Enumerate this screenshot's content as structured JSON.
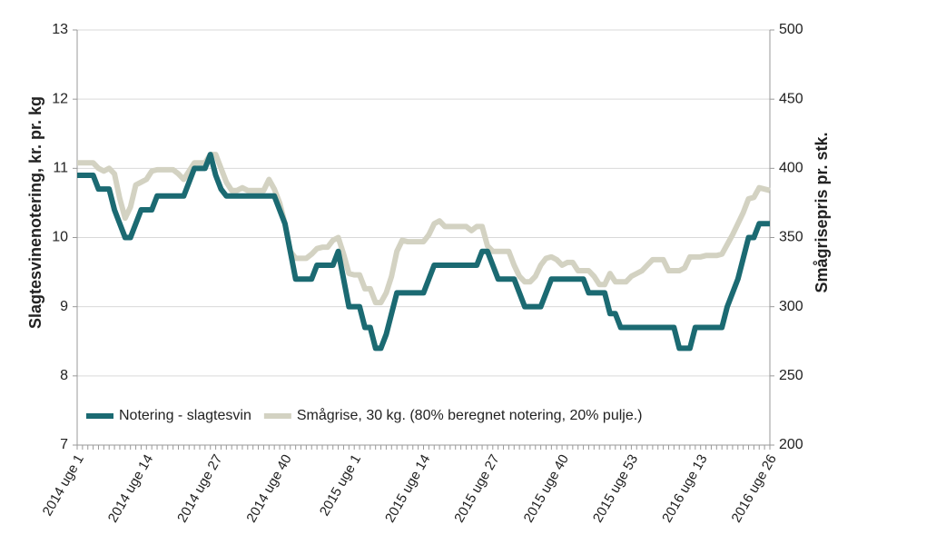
{
  "chart_data": {
    "type": "line",
    "y_label": "Slagtesvinenotering, kr. pr. kg",
    "y2_label": "Smågrisepris pr. stk.",
    "categories": [
      "2014 uge 1",
      null,
      null,
      null,
      null,
      null,
      null,
      null,
      null,
      null,
      null,
      null,
      null,
      "2014 uge 14",
      null,
      null,
      null,
      null,
      null,
      null,
      null,
      null,
      null,
      null,
      null,
      null,
      "2014 uge 27",
      null,
      null,
      null,
      null,
      null,
      null,
      null,
      null,
      null,
      null,
      null,
      null,
      "2014 uge 40",
      null,
      null,
      null,
      null,
      null,
      null,
      null,
      null,
      null,
      null,
      null,
      null,
      "2015 uge 1",
      null,
      null,
      null,
      null,
      null,
      null,
      null,
      null,
      null,
      null,
      null,
      null,
      "2015 uge 14",
      null,
      null,
      null,
      null,
      null,
      null,
      null,
      null,
      null,
      null,
      null,
      null,
      "2015 uge 27",
      null,
      null,
      null,
      null,
      null,
      null,
      null,
      null,
      null,
      null,
      null,
      null,
      "2015 uge 40",
      null,
      null,
      null,
      null,
      null,
      null,
      null,
      null,
      null,
      null,
      null,
      null,
      "2015 uge 53",
      null,
      null,
      null,
      null,
      null,
      null,
      null,
      null,
      null,
      null,
      null,
      null,
      "2016 uge 13",
      null,
      null,
      null,
      null,
      null,
      null,
      null,
      null,
      null,
      null,
      null,
      null,
      "2016 uge 26"
    ],
    "series": [
      {
        "name": "Notering - slagtesvin",
        "color": "#1b6a72",
        "axis": "y",
        "values": [
          10.9,
          10.9,
          10.9,
          10.9,
          10.7,
          10.7,
          10.7,
          10.4,
          10.2,
          10.0,
          10.0,
          10.2,
          10.4,
          10.4,
          10.4,
          10.6,
          10.6,
          10.6,
          10.6,
          10.6,
          10.6,
          10.8,
          11.0,
          11.0,
          11.0,
          11.2,
          10.9,
          10.7,
          10.6,
          10.6,
          10.6,
          10.6,
          10.6,
          10.6,
          10.6,
          10.6,
          10.6,
          10.6,
          10.4,
          10.2,
          9.8,
          9.4,
          9.4,
          9.4,
          9.4,
          9.6,
          9.6,
          9.6,
          9.6,
          9.8,
          9.4,
          9.0,
          9.0,
          9.0,
          8.7,
          8.7,
          8.4,
          8.4,
          8.6,
          8.9,
          9.2,
          9.2,
          9.2,
          9.2,
          9.2,
          9.2,
          9.4,
          9.6,
          9.6,
          9.6,
          9.6,
          9.6,
          9.6,
          9.6,
          9.6,
          9.6,
          9.8,
          9.8,
          9.6,
          9.4,
          9.4,
          9.4,
          9.4,
          9.2,
          9.0,
          9.0,
          9.0,
          9.0,
          9.2,
          9.4,
          9.4,
          9.4,
          9.4,
          9.4,
          9.4,
          9.4,
          9.2,
          9.2,
          9.2,
          9.2,
          8.9,
          8.9,
          8.7,
          8.7,
          8.7,
          8.7,
          8.7,
          8.7,
          8.7,
          8.7,
          8.7,
          8.7,
          8.7,
          8.4,
          8.4,
          8.4,
          8.7,
          8.7,
          8.7,
          8.7,
          8.7,
          8.7,
          9.0,
          9.2,
          9.4,
          9.7,
          10.0,
          10.0,
          10.2,
          10.2,
          10.2
        ]
      },
      {
        "name": "Smågrise, 30 kg. (80% beregnet notering, 20% pulje.)",
        "color": "#d3d2c2",
        "axis": "y2",
        "values": [
          404,
          404,
          404,
          404,
          400,
          398,
          400,
          396,
          378,
          364,
          372,
          388,
          390,
          392,
          398,
          399,
          399,
          399,
          399,
          396,
          392,
          398,
          404,
          404,
          404,
          410,
          410,
          400,
          390,
          384,
          384,
          386,
          384,
          384,
          384,
          384,
          392,
          385,
          375,
          360,
          340,
          335,
          335,
          335,
          338,
          342,
          343,
          343,
          348,
          350,
          338,
          324,
          323,
          323,
          313,
          313,
          303,
          303,
          310,
          322,
          340,
          348,
          347,
          347,
          347,
          347,
          352,
          360,
          362,
          358,
          358,
          358,
          358,
          358,
          355,
          358,
          358,
          344,
          340,
          340,
          340,
          340,
          330,
          322,
          318,
          318,
          322,
          330,
          335,
          336,
          334,
          330,
          332,
          332,
          326,
          326,
          326,
          322,
          316,
          316,
          324,
          318,
          318,
          318,
          322,
          324,
          326,
          330,
          334,
          334,
          334,
          326,
          326,
          326,
          328,
          336,
          336,
          336,
          337,
          337,
          337,
          338,
          345,
          352,
          360,
          368,
          378,
          379,
          386,
          385,
          384
        ]
      }
    ],
    "ylim": [
      7,
      13
    ],
    "yticks": [
      7,
      8,
      9,
      10,
      11,
      12,
      13
    ],
    "y2lim": [
      200,
      500
    ],
    "y2ticks": [
      200,
      250,
      300,
      350,
      400,
      450,
      500
    ],
    "grid": true,
    "legend": "bottom-left"
  }
}
